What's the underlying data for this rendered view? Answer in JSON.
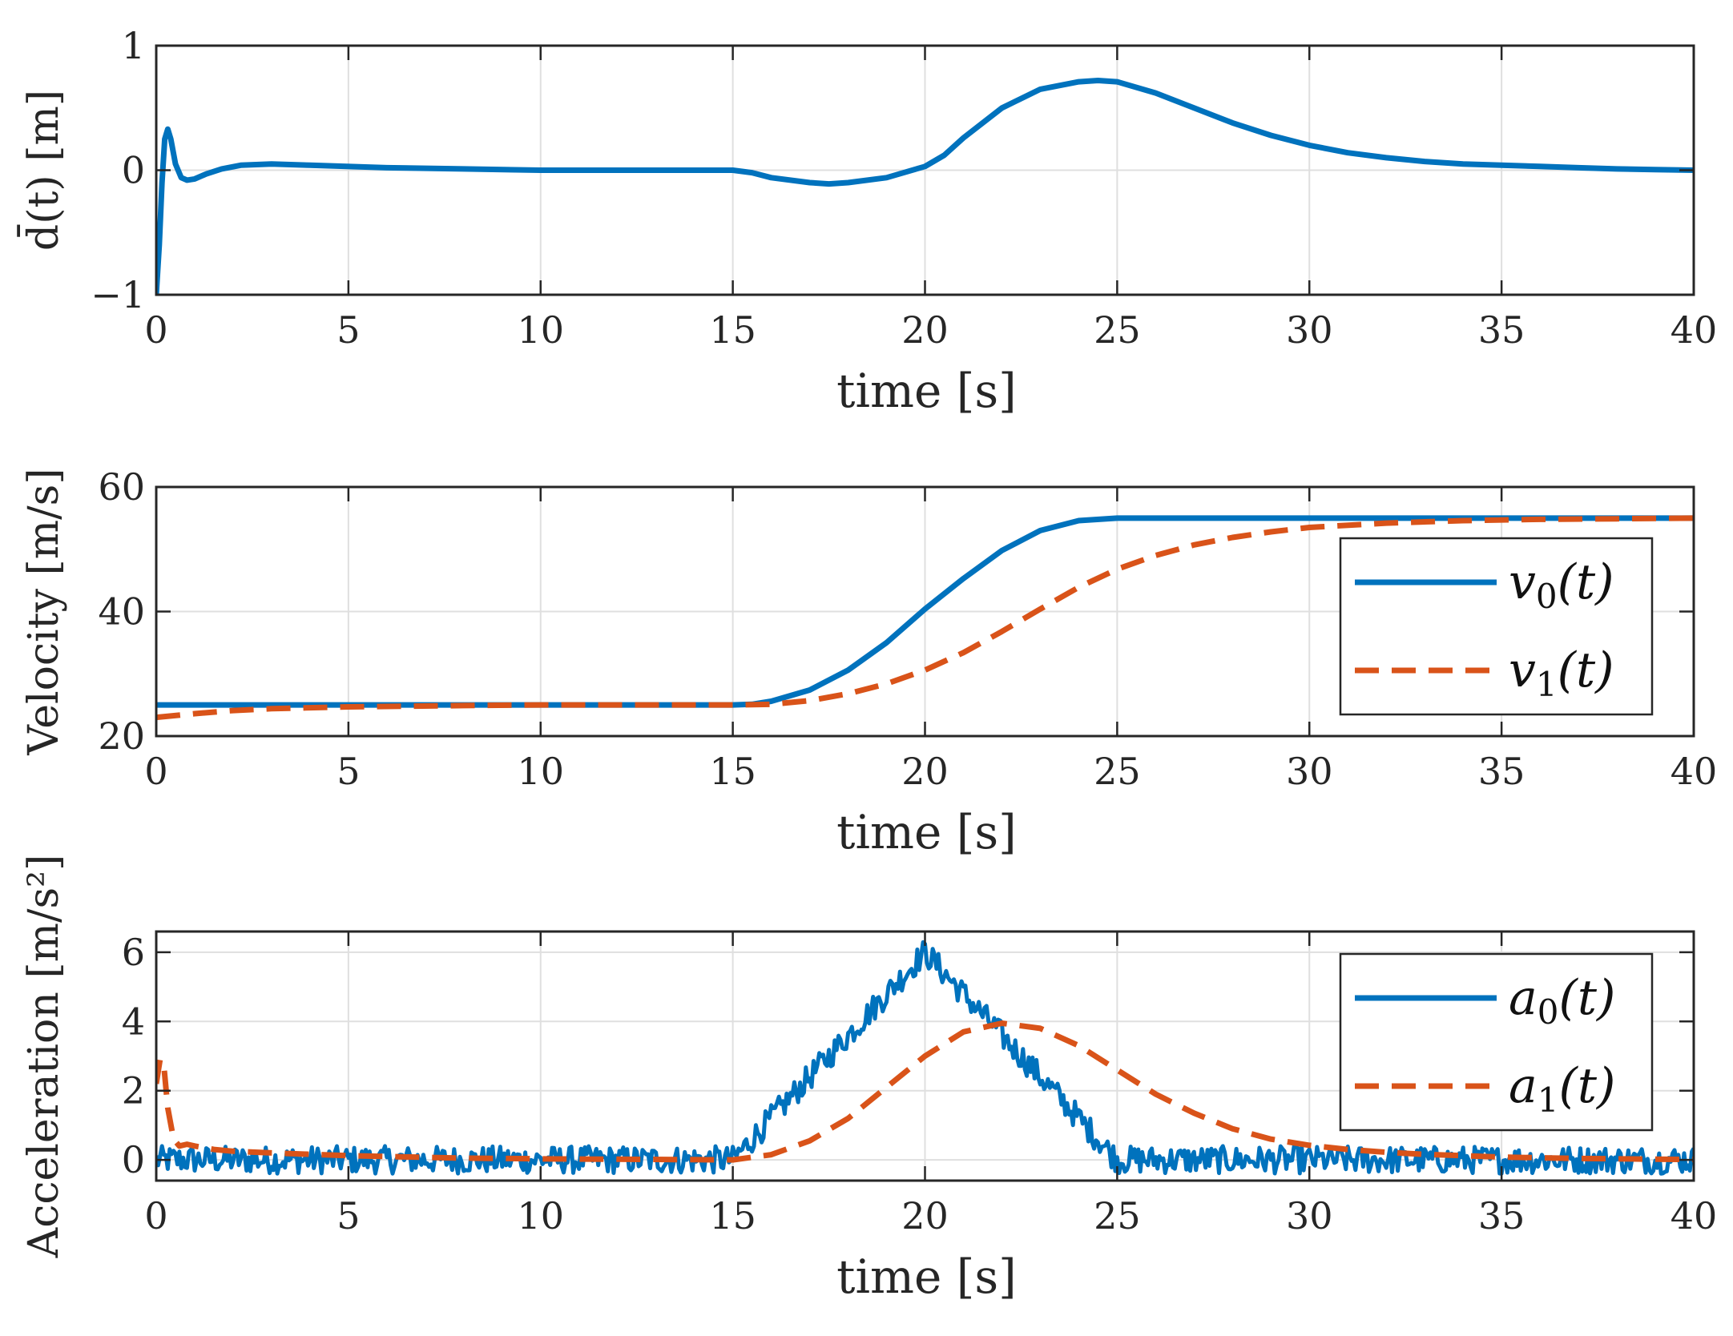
{
  "colors": {
    "blue": "#0072BD",
    "orange": "#D95319",
    "axis": "#262626",
    "grid": "#dfdfdf"
  },
  "chart_data": [
    {
      "type": "line",
      "id": "distance",
      "xlabel": "time [s]",
      "ylabel": "d̄(t) [m]",
      "xlim": [
        0,
        40
      ],
      "ylim": [
        -1,
        1
      ],
      "xticks": [
        0,
        5,
        10,
        15,
        20,
        25,
        30,
        35,
        40
      ],
      "yticks": [
        -1,
        0,
        1
      ],
      "ytick_labels": [
        "−1",
        "0",
        "1"
      ],
      "grid": true,
      "series": [
        {
          "name": "d̄(t)",
          "color": "#0072BD",
          "style": "solid",
          "x": [
            0,
            0.08,
            0.15,
            0.22,
            0.3,
            0.38,
            0.5,
            0.65,
            0.8,
            1.0,
            1.3,
            1.7,
            2.2,
            3,
            4,
            6,
            8,
            10,
            12,
            14,
            15,
            15.5,
            16,
            17,
            17.5,
            18,
            19,
            20,
            20.5,
            21,
            22,
            23,
            24,
            24.5,
            25,
            26,
            27,
            28,
            29,
            30,
            31,
            32,
            33,
            34,
            35,
            36,
            37,
            38,
            39,
            40
          ],
          "y": [
            -1,
            -0.6,
            -0.1,
            0.25,
            0.33,
            0.25,
            0.05,
            -0.06,
            -0.08,
            -0.07,
            -0.03,
            0.01,
            0.04,
            0.05,
            0.04,
            0.02,
            0.01,
            0.0,
            0.0,
            0.0,
            0.0,
            -0.02,
            -0.06,
            -0.1,
            -0.11,
            -0.1,
            -0.06,
            0.03,
            0.12,
            0.26,
            0.5,
            0.65,
            0.71,
            0.72,
            0.71,
            0.62,
            0.5,
            0.38,
            0.28,
            0.2,
            0.14,
            0.1,
            0.07,
            0.05,
            0.04,
            0.03,
            0.02,
            0.01,
            0.005,
            0.0
          ]
        }
      ]
    },
    {
      "type": "line",
      "id": "velocity",
      "xlabel": "time [s]",
      "ylabel": "Velocity [m/s]",
      "xlim": [
        0,
        40
      ],
      "ylim": [
        20,
        60
      ],
      "xticks": [
        0,
        5,
        10,
        15,
        20,
        25,
        30,
        35,
        40
      ],
      "yticks": [
        20,
        40,
        60
      ],
      "ytick_labels": [
        "20",
        "40",
        "60"
      ],
      "grid": true,
      "legend": "right",
      "series": [
        {
          "name": "v₀(t)",
          "legend_base": "v",
          "legend_sub": "0",
          "legend_rest": "(t)",
          "color": "#0072BD",
          "style": "solid",
          "x": [
            0,
            15,
            15.5,
            16,
            17,
            18,
            19,
            20,
            21,
            22,
            23,
            24,
            25,
            30,
            35,
            40
          ],
          "y": [
            25,
            25,
            25.1,
            25.6,
            27.4,
            30.6,
            35,
            40.4,
            45.3,
            49.8,
            53,
            54.6,
            55,
            55,
            55,
            55
          ]
        },
        {
          "name": "v₁(t)",
          "legend_base": "v",
          "legend_sub": "1",
          "legend_rest": "(t)",
          "color": "#D95319",
          "style": "dashed",
          "x": [
            0,
            1,
            2,
            3,
            5,
            8,
            10,
            15,
            16,
            17,
            18,
            19,
            20,
            21,
            22,
            23,
            24,
            25,
            26,
            27,
            28,
            29,
            30,
            32,
            34,
            36,
            38,
            40
          ],
          "y": [
            23,
            23.6,
            24.1,
            24.4,
            24.7,
            24.9,
            25,
            25,
            25.1,
            25.7,
            26.8,
            28.4,
            30.6,
            33.4,
            36.8,
            40.4,
            43.9,
            46.8,
            49,
            50.7,
            51.9,
            52.8,
            53.5,
            54.2,
            54.6,
            54.8,
            54.9,
            55
          ]
        }
      ]
    },
    {
      "type": "line",
      "id": "acceleration",
      "xlabel": "time [s]",
      "ylabel": "Acceleration [m/s²]",
      "xlim": [
        0,
        40
      ],
      "ylim": [
        -0.6,
        6.6
      ],
      "xticks": [
        0,
        5,
        10,
        15,
        20,
        25,
        30,
        35,
        40
      ],
      "yticks": [
        0,
        2,
        4,
        6
      ],
      "ytick_labels": [
        "0",
        "2",
        "4",
        "6"
      ],
      "grid": true,
      "legend": "top-right",
      "noise_amplitude": 0.4,
      "series": [
        {
          "name": "a₀(t)",
          "legend_base": "a",
          "legend_sub": "0",
          "legend_rest": "(t)",
          "color": "#0072BD",
          "style": "solid",
          "noisy": true,
          "x": [
            0,
            15,
            20,
            25,
            40
          ],
          "y": [
            0,
            0,
            6,
            0,
            0
          ]
        },
        {
          "name": "a₁(t)",
          "legend_base": "a",
          "legend_sub": "1",
          "legend_rest": "(t)",
          "color": "#D95319",
          "style": "dashed",
          "x": [
            0,
            0.1,
            0.2,
            0.3,
            0.45,
            0.6,
            0.8,
            1.0,
            1.5,
            2,
            3,
            5,
            8,
            10,
            15,
            16,
            17,
            18,
            19,
            20,
            21,
            22,
            23,
            24,
            25,
            26,
            27,
            28,
            29,
            30,
            31,
            32,
            33,
            34,
            35,
            36,
            37,
            38,
            39,
            40
          ],
          "y": [
            2.2,
            2.9,
            2.7,
            1.5,
            0.6,
            0.4,
            0.45,
            0.4,
            0.3,
            0.25,
            0.2,
            0.12,
            0.05,
            0.03,
            0.0,
            0.15,
            0.55,
            1.2,
            2.1,
            3.0,
            3.7,
            3.95,
            3.8,
            3.3,
            2.6,
            1.9,
            1.35,
            0.9,
            0.6,
            0.42,
            0.3,
            0.22,
            0.16,
            0.12,
            0.08,
            0.06,
            0.04,
            0.03,
            0.02,
            0.01
          ]
        }
      ]
    }
  ]
}
